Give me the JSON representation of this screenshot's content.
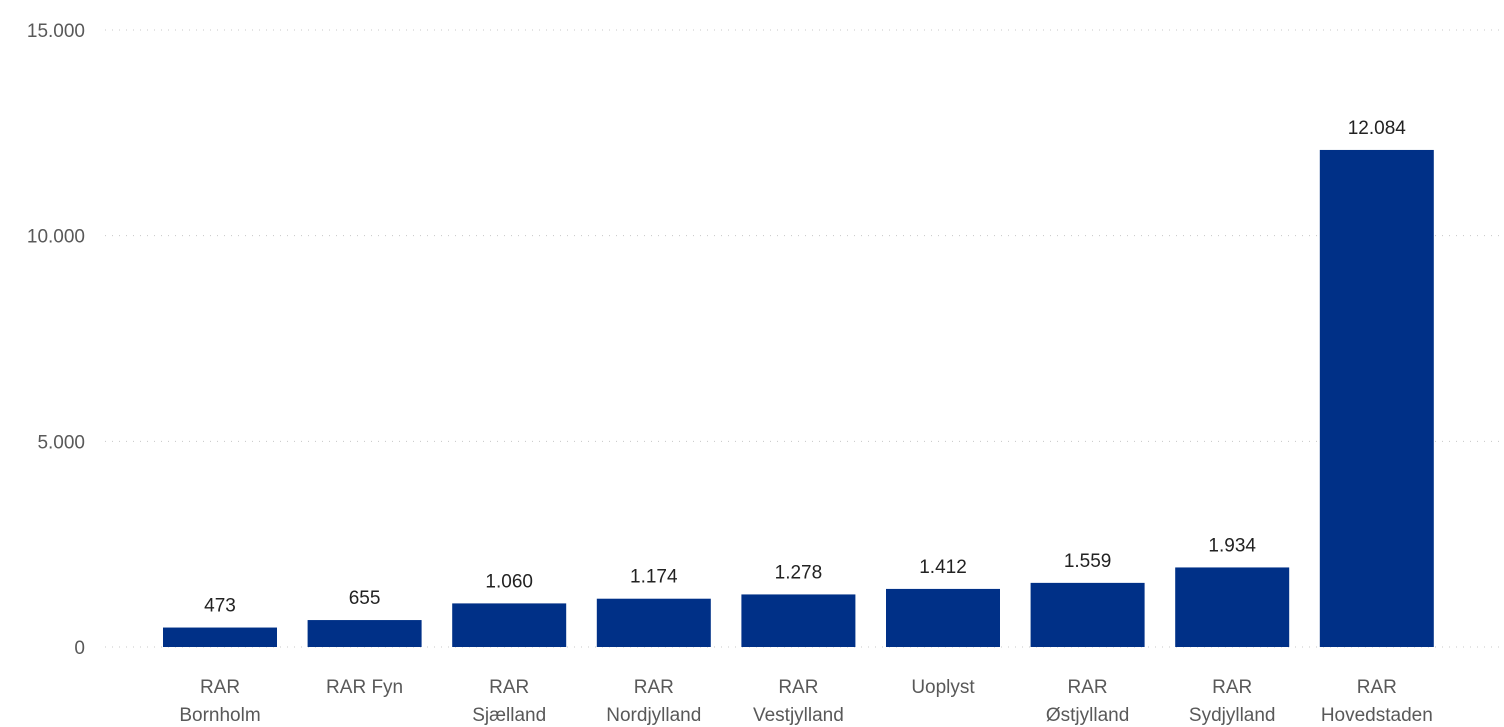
{
  "chart_data": {
    "type": "bar",
    "categories": [
      [
        "RAR",
        "Bornholm"
      ],
      [
        "RAR Fyn"
      ],
      [
        "RAR",
        "Sjælland"
      ],
      [
        "RAR",
        "Nordjylland"
      ],
      [
        "RAR",
        "Vestjylland"
      ],
      [
        "Uoplyst"
      ],
      [
        "RAR",
        "Østjylland"
      ],
      [
        "RAR",
        "Sydjylland"
      ],
      [
        "RAR",
        "Hovedstaden"
      ]
    ],
    "values": [
      473,
      655,
      1060,
      1174,
      1278,
      1412,
      1559,
      1934,
      12084
    ],
    "data_labels": [
      "473",
      "655",
      "1.060",
      "1.174",
      "1.278",
      "1.412",
      "1.559",
      "1.934",
      "12.084"
    ],
    "y_ticks": [
      0,
      5000,
      10000,
      15000
    ],
    "y_tick_labels": [
      "0",
      "5.000",
      "10.000",
      "15.000"
    ],
    "ylim": [
      0,
      15000
    ],
    "grid": true,
    "bar_color": "#003087",
    "title": "",
    "xlabel": "",
    "ylabel": ""
  }
}
